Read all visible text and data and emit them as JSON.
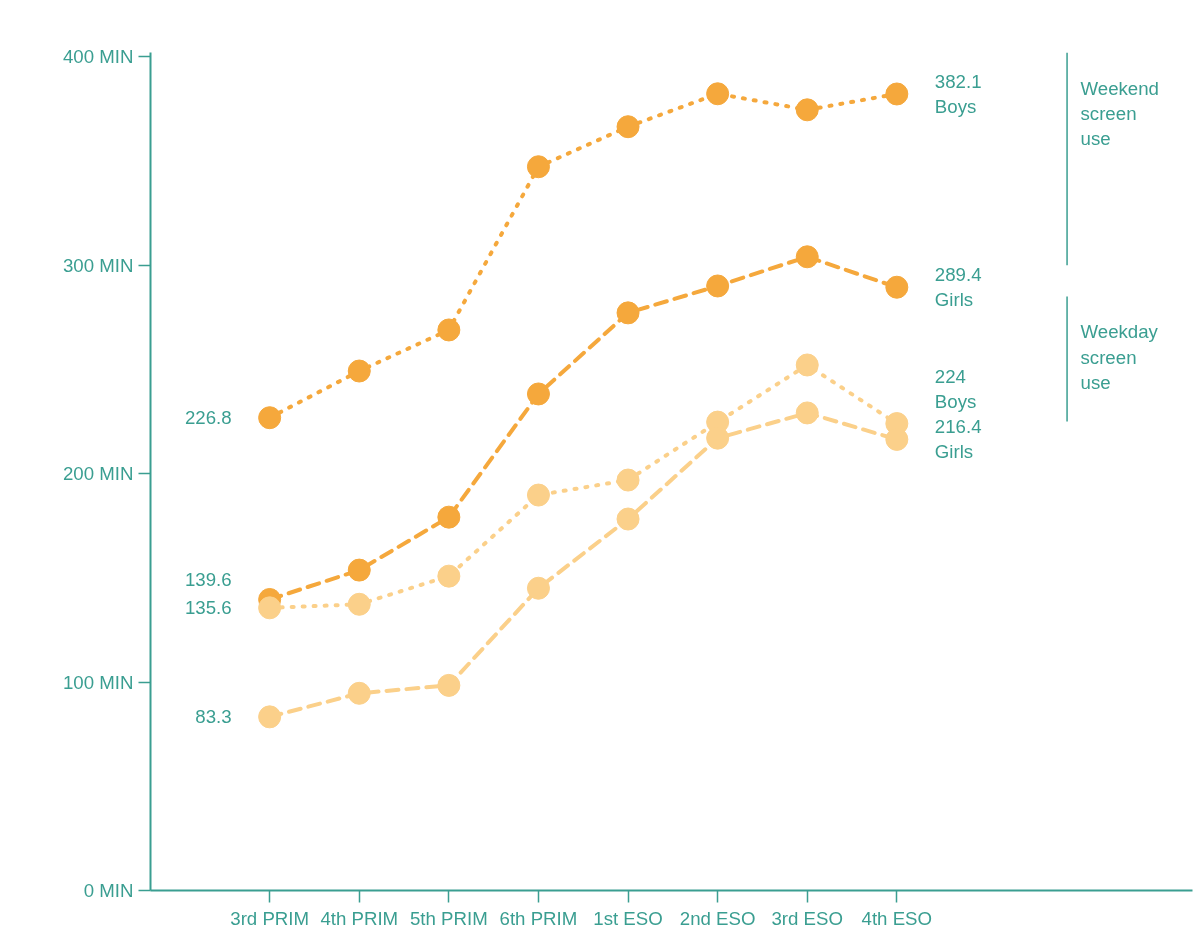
{
  "chart_data": {
    "type": "line",
    "categories": [
      "3rd PRIM",
      "4th PRIM",
      "5th PRIM",
      "6th PRIM",
      "1st ESO",
      "2nd ESO",
      "3rd ESO",
      "4th ESO"
    ],
    "series": [
      {
        "name": "Boys",
        "color": "#f5a83c",
        "line_style": "dotted",
        "values": [
          226.8,
          249.2,
          268.9,
          347.2,
          366.4,
          382.2,
          374.5,
          382.1
        ],
        "value_labels": [
          "226.8",
          null,
          null,
          null,
          null,
          null,
          null,
          "382.1"
        ]
      },
      {
        "name": "Girls",
        "color": "#f5a83c",
        "line_style": "dashed",
        "values": [
          139.6,
          153.7,
          179.1,
          238.2,
          277.1,
          290.0,
          304.0,
          289.4
        ],
        "value_labels": [
          "139.6",
          null,
          null,
          null,
          null,
          null,
          null,
          "289.4"
        ]
      },
      {
        "name": "Boys",
        "color": "#fbd08a",
        "line_style": "dotted",
        "values": [
          135.6,
          137.3,
          150.8,
          189.7,
          196.9,
          224.7,
          252.1,
          224
        ],
        "value_labels": [
          "135.6",
          null,
          null,
          null,
          null,
          null,
          null,
          "224"
        ]
      },
      {
        "name": "Girls",
        "color": "#fbd08a",
        "line_style": "dashed",
        "values": [
          83.3,
          94.6,
          98.4,
          145.0,
          178.2,
          217.0,
          229.1,
          216.4
        ],
        "value_labels": [
          "83.3",
          null,
          null,
          null,
          null,
          null,
          null,
          "216.4"
        ]
      }
    ],
    "ylim": [
      0,
      402
    ],
    "yticks": [
      {
        "value": 0,
        "label": "0 MIN"
      },
      {
        "value": 100,
        "label": "100 MIN"
      },
      {
        "value": 200,
        "label": "200 MIN"
      },
      {
        "value": 300,
        "label": "300 MIN"
      },
      {
        "value": 400,
        "label": "400 MIN"
      }
    ],
    "annotations": [
      "Weekend screen use",
      "Weekday screen use"
    ],
    "marker": "circle",
    "grid": false
  }
}
